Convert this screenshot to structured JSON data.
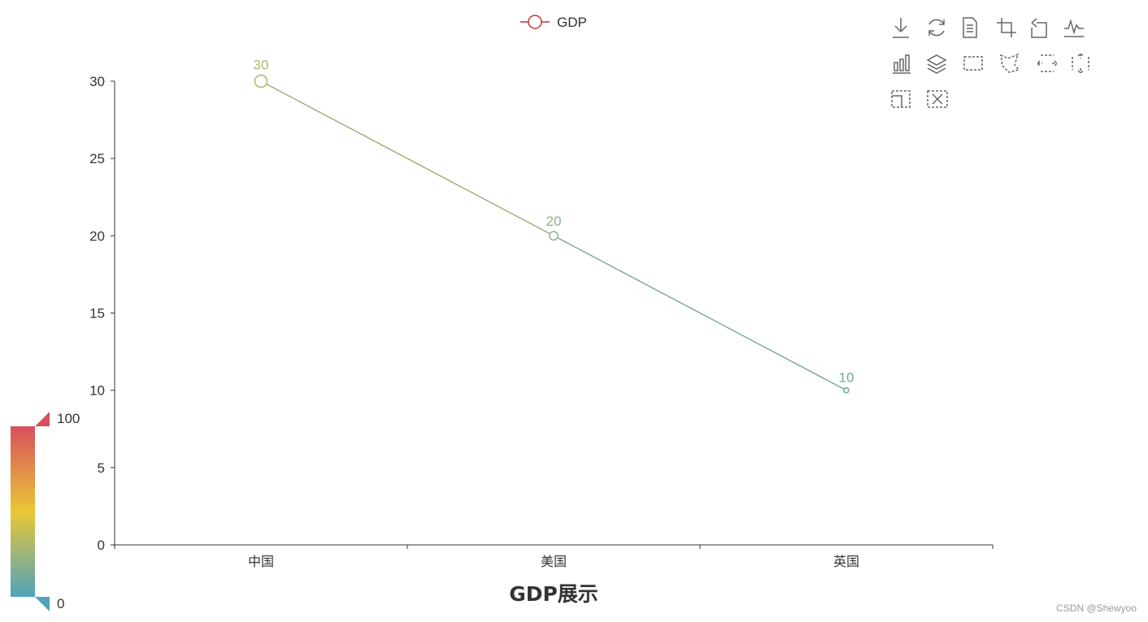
{
  "chart_data": {
    "type": "line",
    "title": "GDP展示",
    "categories": [
      "中国",
      "美国",
      "英国"
    ],
    "series": [
      {
        "name": "GDP",
        "values": [
          30,
          20,
          10
        ]
      }
    ],
    "ylim": [
      0,
      30
    ],
    "yticks": [
      0,
      5,
      10,
      15,
      20,
      25,
      30
    ],
    "xlabel": "",
    "ylabel": "",
    "grid": false,
    "legend": "top-center",
    "data_labels": true,
    "visual_map": {
      "min": 0,
      "max": 100,
      "min_label": "0",
      "max_label": "100",
      "colors": [
        "#50a3ba",
        "#eac736",
        "#d94e5d"
      ]
    }
  },
  "toolbox": {
    "icons": [
      "save-as-image-icon",
      "restore-icon",
      "data-view-icon",
      "zoom-icon",
      "zoom-back-icon",
      "line-chart-icon",
      "bar-chart-icon",
      "stack-icon",
      "rect-select-icon",
      "polygon-select-icon",
      "line-x-select-icon",
      "line-y-select-icon",
      "keep-select-icon",
      "clear-select-icon"
    ]
  },
  "colors": {
    "legend_marker": "#c23531",
    "axis": "#333333"
  },
  "watermark": "CSDN @Shewyoo"
}
